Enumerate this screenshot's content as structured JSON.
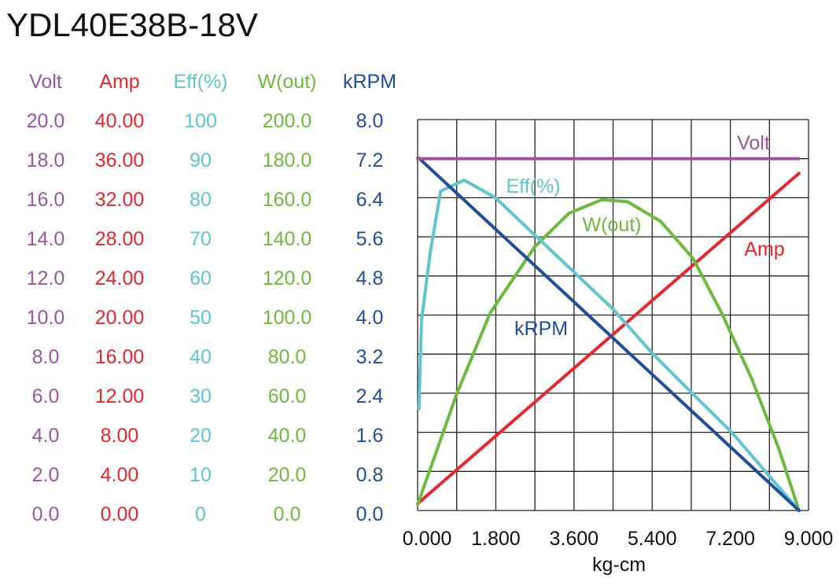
{
  "chart_data": {
    "type": "line",
    "title": "YDL40E38B-18V",
    "xlabel": "kg-cm",
    "xlim": [
      0,
      9.0
    ],
    "x_ticks": [
      "0.000",
      "1.800",
      "3.600",
      "5.400",
      "7.200",
      "9.000"
    ],
    "x_tick_values": [
      0,
      1.8,
      3.6,
      5.4,
      7.2,
      9.0
    ],
    "grid": true,
    "y_axes": [
      {
        "name": "Volt",
        "color": "#9b55a3",
        "range": [
          0,
          20
        ],
        "ticks": [
          "20.0",
          "18.0",
          "16.0",
          "14.0",
          "12.0",
          "10.0",
          "8.0",
          "6.0",
          "4.0",
          "2.0",
          "0.0"
        ]
      },
      {
        "name": "Amp",
        "color": "#e8262b",
        "range": [
          0,
          40
        ],
        "ticks": [
          "40.00",
          "36.00",
          "32.00",
          "28.00",
          "24.00",
          "20.00",
          "16.00",
          "12.00",
          "8.00",
          "4.00",
          "0.00"
        ]
      },
      {
        "name": "Eff(%)",
        "color": "#5ec5d1",
        "range": [
          0,
          100
        ],
        "ticks": [
          "100",
          "90",
          "80",
          "70",
          "60",
          "50",
          "40",
          "30",
          "20",
          "10",
          "0"
        ]
      },
      {
        "name": "W(out)",
        "color": "#6cbb3c",
        "range": [
          0,
          200
        ],
        "ticks": [
          "200.0",
          "180.0",
          "160.0",
          "140.0",
          "120.0",
          "100.0",
          "80.0",
          "60.0",
          "40.0",
          "20.0",
          "0.0"
        ]
      },
      {
        "name": "kRPM",
        "color": "#1f4e9c",
        "range": [
          0,
          8
        ],
        "ticks": [
          "8.0",
          "7.2",
          "6.4",
          "5.6",
          "4.8",
          "4.0",
          "3.2",
          "2.4",
          "1.6",
          "0.8",
          "0.0"
        ]
      }
    ],
    "series": [
      {
        "name": "Volt",
        "axis": 0,
        "x": [
          0,
          8.78
        ],
        "y": [
          18.0,
          18.0
        ]
      },
      {
        "name": "Amp",
        "axis": 1,
        "x": [
          0,
          8.78
        ],
        "y": [
          0.7,
          34.5
        ]
      },
      {
        "name": "Eff(%)",
        "axis": 2,
        "x": [
          0.03,
          0.09,
          0.29,
          0.53,
          1.07,
          1.79,
          4.5,
          5.42,
          6.32,
          7.23,
          8.78
        ],
        "y": [
          26,
          48.7,
          66,
          81.7,
          84.5,
          80,
          51.5,
          40,
          30,
          20,
          0
        ]
      },
      {
        "name": "W(out)",
        "axis": 3,
        "x": [
          0,
          0.9,
          1.67,
          2.7,
          3.48,
          4.24,
          4.83,
          5.59,
          6.34,
          7.0,
          7.68,
          8.31,
          8.78
        ],
        "y": [
          3,
          59.6,
          101,
          135,
          152,
          159,
          158,
          148,
          129,
          101,
          68,
          32,
          0
        ]
      },
      {
        "name": "kRPM",
        "axis": 4,
        "x": [
          0.03,
          8.78
        ],
        "y": [
          7.21,
          0
        ]
      }
    ]
  }
}
